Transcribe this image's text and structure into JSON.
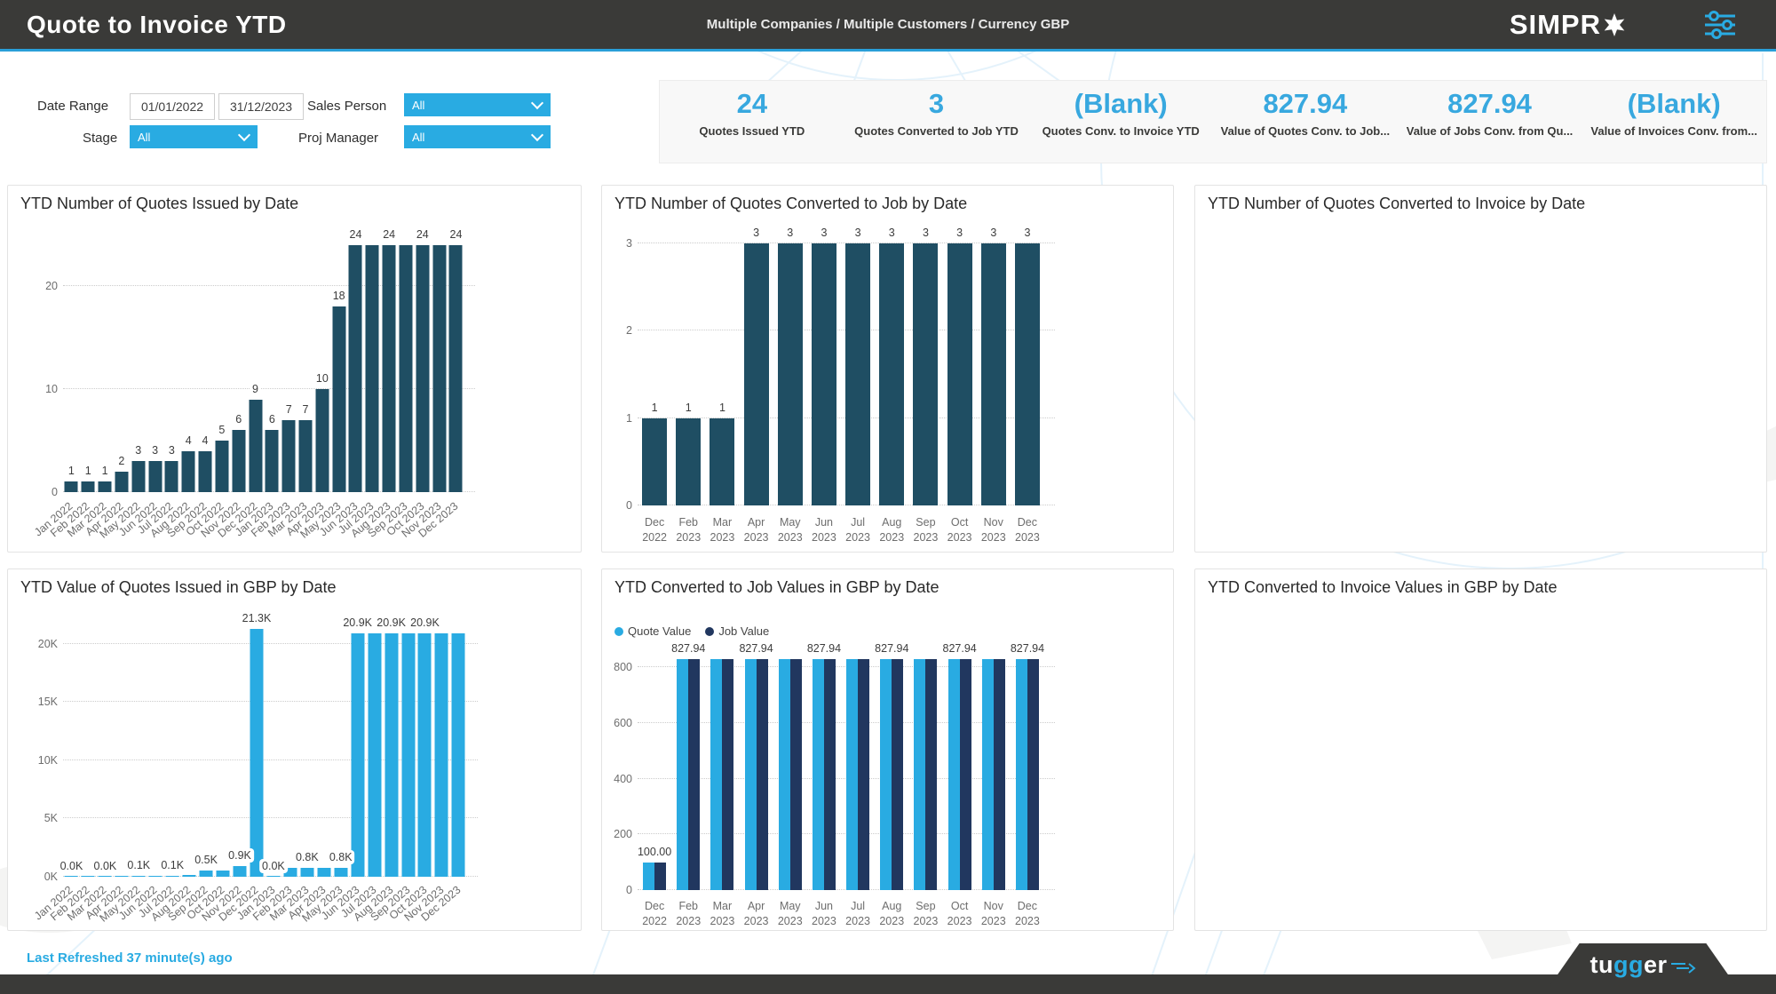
{
  "header": {
    "title": "Quote to Invoice YTD",
    "subtitle": "Multiple Companies / Multiple Customers /  Currency GBP",
    "brand_text": "SIMPR",
    "accent_color": "#29abe2",
    "bar_color": "#3a3a38"
  },
  "filters": {
    "date_range_label": "Date Range",
    "date_from": "01/01/2022",
    "date_to": "31/12/2023",
    "sales_person_label": "Sales Person",
    "sales_person_value": "All",
    "stage_label": "Stage",
    "stage_value": "All",
    "proj_manager_label": "Proj Manager",
    "proj_manager_value": "All"
  },
  "kpis": [
    {
      "value": "24",
      "label": "Quotes Issued YTD"
    },
    {
      "value": "3",
      "label": "Quotes Converted to Job YTD"
    },
    {
      "value": "(Blank)",
      "label": "Quotes Conv. to Invoice YTD"
    },
    {
      "value": "827.94",
      "label": "Value of Quotes Conv. to Job..."
    },
    {
      "value": "827.94",
      "label": "Value of Jobs Conv. from Qu..."
    },
    {
      "value": "(Blank)",
      "label": "Value of Invoices Conv. from..."
    }
  ],
  "chart_data": [
    {
      "type": "bar",
      "title": "YTD Number of Quotes Issued by Date",
      "bar_color": "#1f4e63",
      "categories": [
        "Jan 2022",
        "Feb 2022",
        "Mar 2022",
        "Apr 2022",
        "May 2022",
        "Jun 2022",
        "Jul 2022",
        "Aug 2022",
        "Sep 2022",
        "Oct 2022",
        "Nov 2022",
        "Dec 2022",
        "Jan 2023",
        "Feb 2023",
        "Mar 2023",
        "Apr 2023",
        "May 2023",
        "Jun 2023",
        "Jul 2023",
        "Aug 2023",
        "Sep 2023",
        "Oct 2023",
        "Nov 2023",
        "Dec 2023"
      ],
      "values": [
        1,
        1,
        1,
        2,
        3,
        3,
        3,
        4,
        4,
        5,
        6,
        9,
        6,
        7,
        7,
        10,
        18,
        24,
        24,
        24,
        24,
        24,
        24,
        24
      ],
      "labels": [
        "1",
        "1",
        "1",
        "2",
        "3",
        "3",
        "3",
        "4",
        "4",
        "5",
        "6",
        "9",
        "6",
        "7",
        "7",
        "10",
        "18",
        "24",
        null,
        "24",
        null,
        "24",
        null,
        "24"
      ],
      "y_ticks": [
        {
          "value": 0,
          "label": "0"
        },
        {
          "value": 10,
          "label": "10"
        },
        {
          "value": 20,
          "label": "20"
        }
      ],
      "y_max": 25,
      "x_rotate": true,
      "grid": true
    },
    {
      "type": "bar",
      "title": "YTD Number of Quotes Converted to Job by Date",
      "bar_color": "#1f4e63",
      "categories": [
        "Dec 2022",
        "Feb 2023",
        "Mar 2023",
        "Apr 2023",
        "May 2023",
        "Jun 2023",
        "Jul 2023",
        "Aug 2023",
        "Sep 2023",
        "Oct 2023",
        "Nov 2023",
        "Dec 2023"
      ],
      "values": [
        1,
        1,
        1,
        3,
        3,
        3,
        3,
        3,
        3,
        3,
        3,
        3
      ],
      "labels": [
        "1",
        "1",
        "1",
        "3",
        "3",
        "3",
        "3",
        "3",
        "3",
        "3",
        "3",
        "3"
      ],
      "y_ticks": [
        {
          "value": 0,
          "label": "0"
        },
        {
          "value": 1,
          "label": "1"
        },
        {
          "value": 2,
          "label": "2"
        },
        {
          "value": 3,
          "label": "3"
        }
      ],
      "y_max": 3.1,
      "x_rotate": false,
      "grid": true
    },
    {
      "type": "empty",
      "title": "YTD Number of Quotes Converted to Invoice by Date"
    },
    {
      "type": "bar",
      "title": "YTD Value of Quotes Issued in GBP by Date",
      "bar_color": "#29abe2",
      "categories": [
        "Jan 2022",
        "Feb 2022",
        "Mar 2022",
        "Apr 2022",
        "May 2022",
        "Jun 2022",
        "Jul 2022",
        "Aug 2022",
        "Sep 2022",
        "Oct 2022",
        "Nov 2022",
        "Dec 2022",
        "Jan 2023",
        "Feb 2023",
        "Mar 2023",
        "Apr 2023",
        "May 2023",
        "Jun 2023",
        "Jul 2023",
        "Aug 2023",
        "Sep 2023",
        "Oct 2023",
        "Nov 2023",
        "Dec 2023"
      ],
      "values": [
        0.02,
        0.02,
        0.03,
        0.05,
        0.1,
        0.1,
        0.1,
        0.12,
        0.5,
        0.5,
        0.9,
        21.3,
        0.03,
        0.8,
        0.8,
        0.8,
        0.8,
        20.9,
        20.9,
        20.9,
        20.9,
        20.9,
        20.9,
        20.9
      ],
      "labels": [
        "0.0K",
        null,
        "0.0K",
        null,
        "0.1K",
        null,
        "0.1K",
        null,
        "0.5K",
        null,
        "0.9K",
        "21.3K",
        "0.0K",
        null,
        "0.8K",
        null,
        "0.8K",
        "20.9K",
        null,
        "20.9K",
        null,
        "20.9K",
        null,
        null
      ],
      "y_ticks": [
        {
          "value": 0,
          "label": "0K"
        },
        {
          "value": 5,
          "label": "5K"
        },
        {
          "value": 10,
          "label": "10K"
        },
        {
          "value": 15,
          "label": "15K"
        },
        {
          "value": 20,
          "label": "20K"
        }
      ],
      "y_max": 22.2,
      "x_rotate": true,
      "grid": true
    },
    {
      "type": "grouped_bar",
      "title": "YTD Converted to Job Values in GBP by Date",
      "categories": [
        "Dec 2022",
        "Feb 2023",
        "Mar 2023",
        "Apr 2023",
        "May 2023",
        "Jun 2023",
        "Jul 2023",
        "Aug 2023",
        "Sep 2023",
        "Oct 2023",
        "Nov 2023",
        "Dec 2023"
      ],
      "series": [
        {
          "name": "Quote Value",
          "color": "#29abe2",
          "values": [
            100,
            827.94,
            827.94,
            827.94,
            827.94,
            827.94,
            827.94,
            827.94,
            827.94,
            827.94,
            827.94,
            827.94
          ]
        },
        {
          "name": "Job Value",
          "color": "#21375f",
          "values": [
            100,
            827.94,
            827.94,
            827.94,
            827.94,
            827.94,
            827.94,
            827.94,
            827.94,
            827.94,
            827.94,
            827.94
          ]
        }
      ],
      "labels": [
        "100.00",
        "827.94",
        null,
        "827.94",
        null,
        "827.94",
        null,
        "827.94",
        null,
        "827.94",
        null,
        "827.94"
      ],
      "y_ticks": [
        {
          "value": 0,
          "label": "0"
        },
        {
          "value": 200,
          "label": "200"
        },
        {
          "value": 400,
          "label": "400"
        },
        {
          "value": 600,
          "label": "600"
        },
        {
          "value": 800,
          "label": "800"
        }
      ],
      "y_max": 864,
      "x_rotate": false,
      "legend_position": "top-left",
      "grid": true
    },
    {
      "type": "empty",
      "title": "YTD Converted to Invoice Values in GBP by Date"
    }
  ],
  "footer": {
    "last_refreshed": "Last Refreshed 37 minute(s) ago",
    "logo_part1": "tu",
    "logo_part2": "gg",
    "logo_part3": "er"
  }
}
